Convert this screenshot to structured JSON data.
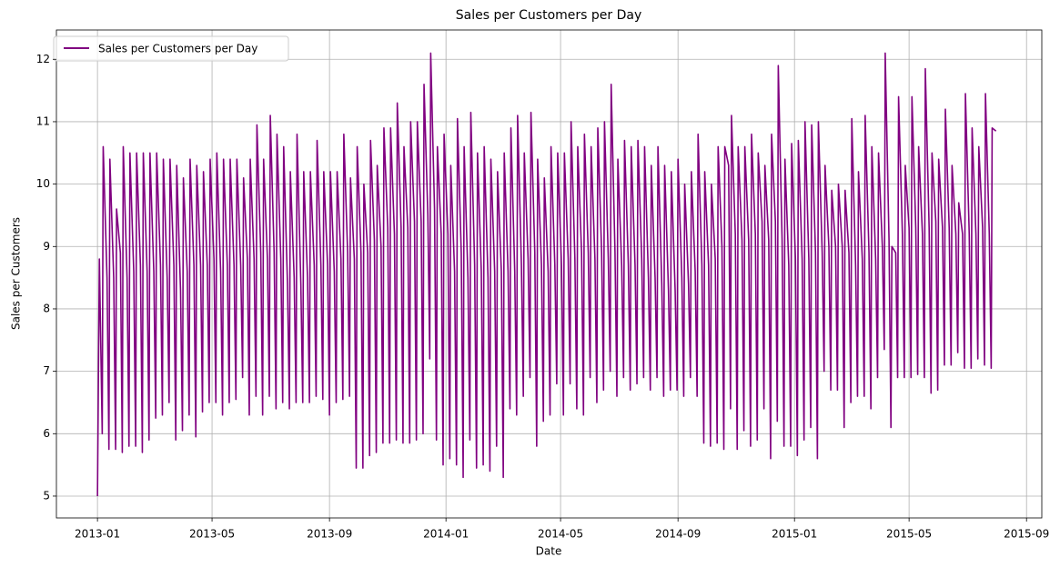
{
  "chart_data": {
    "type": "line",
    "title": "Sales per Customers per Day",
    "xlabel": "Date",
    "ylabel": "Sales per Customers",
    "xlim": [
      -43,
      989
    ],
    "ylim": [
      4.65,
      12.47
    ],
    "xticks": [
      {
        "value": 0,
        "label": "2013-01"
      },
      {
        "value": 120,
        "label": "2013-05"
      },
      {
        "value": 243,
        "label": "2013-09"
      },
      {
        "value": 365,
        "label": "2014-01"
      },
      {
        "value": 485,
        "label": "2014-05"
      },
      {
        "value": 608,
        "label": "2014-09"
      },
      {
        "value": 730,
        "label": "2015-01"
      },
      {
        "value": 850,
        "label": "2015-05"
      },
      {
        "value": 973,
        "label": "2015-09"
      }
    ],
    "yticks": [
      5,
      6,
      7,
      8,
      9,
      10,
      11,
      12
    ],
    "grid": true,
    "legend": "upper left",
    "x": [
      0,
      2,
      5,
      6,
      10,
      12,
      13,
      17,
      19,
      20,
      24,
      26,
      27,
      31,
      33,
      34,
      38,
      40,
      41,
      45,
      47,
      48,
      52,
      54,
      55,
      59,
      61,
      62,
      66,
      68,
      69,
      73,
      75,
      76,
      80,
      82,
      83,
      87,
      89,
      90,
      94,
      96,
      97,
      101,
      103,
      104,
      108,
      110,
      111,
      115,
      117,
      118,
      122,
      124,
      125,
      129,
      131,
      132,
      136,
      138,
      139,
      143,
      145,
      146,
      150,
      152,
      153,
      157,
      159,
      160,
      164,
      166,
      167,
      171,
      173,
      174,
      178,
      180,
      181,
      185,
      187,
      188,
      192,
      194,
      195,
      199,
      201,
      202,
      206,
      208,
      209,
      213,
      215,
      216,
      220,
      222,
      223,
      227,
      229,
      230,
      234,
      236,
      237,
      241,
      243,
      244,
      248,
      250,
      251,
      255,
      257,
      258,
      262,
      264,
      265,
      269,
      271,
      272,
      276,
      278,
      279,
      283,
      285,
      286,
      290,
      292,
      293,
      297,
      299,
      300,
      304,
      306,
      307,
      311,
      313,
      314,
      318,
      320,
      321,
      325,
      327,
      328,
      332,
      334,
      335,
      339,
      341,
      342,
      346,
      348,
      349,
      353,
      355,
      356,
      360,
      362,
      363,
      367,
      369,
      370,
      374,
      376,
      377,
      381,
      383,
      384,
      388,
      390,
      391,
      395,
      397,
      398,
      402,
      404,
      405,
      409,
      411,
      412,
      416,
      418,
      419,
      423,
      425,
      426,
      430,
      432,
      433,
      437,
      439,
      440,
      444,
      446,
      447,
      451,
      453,
      454,
      458,
      460,
      461,
      465,
      467,
      468,
      472,
      474,
      475,
      479,
      481,
      482,
      486,
      488,
      489,
      493,
      495,
      496,
      500,
      502,
      503,
      507,
      509,
      510,
      514,
      516,
      517,
      521,
      523,
      524,
      528,
      530,
      531,
      535,
      537,
      538,
      542,
      544,
      545,
      549,
      551,
      552,
      556,
      558,
      559,
      563,
      565,
      566,
      570,
      572,
      573,
      577,
      579,
      580,
      584,
      586,
      587,
      591,
      593,
      594,
      598,
      600,
      601,
      605,
      607,
      608,
      612,
      614,
      615,
      619,
      621,
      622,
      626,
      628,
      629,
      633,
      635,
      636,
      640,
      642,
      643,
      647,
      649,
      650,
      654,
      656,
      657,
      661,
      663,
      664,
      668,
      670,
      671,
      675,
      677,
      678,
      682,
      684,
      685,
      689,
      691,
      692,
      696,
      698,
      699,
      703,
      705,
      706,
      710,
      712,
      713,
      717,
      719,
      720,
      724,
      726,
      727,
      731,
      733,
      734,
      738,
      740,
      741,
      745,
      747,
      748,
      752,
      754,
      755,
      759,
      761,
      762,
      766,
      768,
      769,
      773,
      775,
      776,
      780,
      782,
      783,
      787,
      789,
      790,
      794,
      796,
      797,
      801,
      803,
      804,
      808,
      810,
      811,
      815,
      817,
      818,
      822,
      824,
      825,
      829,
      831,
      832,
      836,
      838,
      839,
      843,
      845,
      846,
      850,
      852,
      853,
      857,
      859,
      860,
      864,
      866,
      867,
      871,
      873,
      874,
      878,
      880,
      881,
      885,
      887,
      888,
      892,
      894,
      895,
      899,
      901,
      902,
      906,
      908,
      909,
      913,
      915,
      916,
      920,
      922,
      923,
      927,
      929,
      930,
      934,
      936,
      937,
      941
    ],
    "series": [
      {
        "name": "Sales per Customers per Day",
        "color": "#800080",
        "values": [
          5.0,
          8.8,
          6.0,
          10.6,
          8.5,
          5.75,
          10.4,
          8.5,
          5.75,
          9.6,
          8.9,
          5.7,
          10.6,
          8.5,
          5.8,
          10.5,
          8.6,
          5.8,
          10.5,
          8.7,
          5.7,
          10.5,
          8.6,
          5.9,
          10.5,
          8.6,
          6.25,
          10.5,
          8.7,
          6.3,
          10.4,
          8.5,
          6.5,
          10.4,
          8.7,
          5.9,
          10.3,
          8.3,
          6.05,
          10.1,
          8.6,
          6.3,
          10.4,
          8.7,
          5.95,
          10.3,
          8.7,
          6.35,
          10.2,
          8.7,
          6.5,
          10.4,
          8.8,
          6.5,
          10.5,
          8.6,
          6.3,
          10.4,
          8.7,
          6.5,
          10.4,
          8.7,
          6.55,
          10.4,
          8.7,
          6.9,
          10.1,
          8.8,
          6.3,
          10.4,
          8.8,
          6.6,
          10.95,
          8.9,
          6.3,
          10.4,
          8.8,
          6.6,
          11.1,
          8.9,
          6.4,
          10.8,
          8.8,
          6.5,
          10.6,
          8.4,
          6.4,
          10.2,
          8.5,
          6.5,
          10.8,
          8.4,
          6.5,
          10.2,
          8.5,
          6.5,
          10.2,
          8.7,
          6.6,
          10.7,
          8.7,
          6.55,
          10.2,
          8.7,
          6.3,
          10.2,
          8.6,
          6.5,
          10.2,
          8.8,
          6.55,
          10.8,
          8.9,
          6.6,
          10.1,
          8.8,
          5.45,
          10.6,
          8.9,
          5.45,
          10.0,
          8.9,
          5.65,
          10.7,
          9.1,
          5.7,
          10.3,
          9.0,
          5.85,
          10.9,
          9.3,
          5.85,
          10.9,
          9.2,
          5.9,
          11.3,
          9.3,
          5.85,
          10.6,
          9.3,
          5.85,
          11.0,
          9.4,
          5.9,
          11.0,
          9.4,
          6.0,
          11.6,
          9.5,
          7.2,
          12.1,
          9.6,
          5.9,
          10.6,
          9.2,
          5.5,
          10.8,
          9.2,
          5.6,
          10.3,
          8.6,
          5.5,
          11.05,
          8.9,
          5.3,
          10.6,
          8.5,
          5.9,
          11.15,
          8.7,
          5.45,
          10.5,
          8.6,
          5.5,
          10.6,
          8.5,
          5.4,
          10.4,
          8.6,
          5.8,
          10.2,
          8.6,
          5.3,
          10.5,
          8.6,
          6.4,
          10.9,
          8.6,
          6.3,
          11.1,
          8.7,
          6.6,
          10.5,
          8.8,
          6.9,
          11.15,
          8.9,
          5.8,
          10.4,
          8.7,
          6.2,
          10.1,
          8.6,
          6.3,
          10.6,
          8.7,
          6.8,
          10.5,
          8.7,
          6.3,
          10.5,
          8.8,
          6.8,
          11.0,
          8.8,
          6.4,
          10.6,
          8.9,
          6.3,
          10.8,
          8.9,
          6.9,
          10.6,
          8.8,
          6.5,
          10.9,
          8.9,
          6.7,
          11.0,
          8.8,
          7.0,
          11.6,
          8.9,
          6.6,
          10.4,
          8.7,
          6.9,
          10.7,
          8.7,
          6.7,
          10.6,
          8.7,
          6.8,
          10.7,
          8.8,
          6.9,
          10.6,
          8.5,
          6.7,
          10.3,
          8.5,
          6.9,
          10.6,
          8.4,
          6.6,
          10.3,
          8.3,
          6.7,
          10.2,
          8.3,
          6.7,
          10.4,
          8.5,
          6.6,
          10.0,
          8.4,
          6.9,
          10.2,
          8.6,
          6.6,
          10.8,
          8.7,
          5.85,
          10.2,
          8.7,
          5.8,
          10.0,
          8.8,
          5.85,
          10.6,
          9.0,
          5.75,
          10.6,
          10.3,
          6.4,
          11.1,
          9.2,
          5.75,
          10.6,
          9.1,
          6.05,
          10.6,
          9.1,
          5.8,
          10.8,
          9.2,
          5.9,
          10.5,
          9.4,
          6.4,
          10.3,
          9.1,
          5.6,
          10.8,
          9.4,
          6.2,
          11.9,
          9.1,
          5.8,
          10.4,
          8.7,
          5.8,
          10.65,
          8.8,
          5.65,
          10.7,
          8.8,
          5.9,
          11.0,
          8.8,
          6.1,
          10.95,
          8.9,
          5.6,
          11.0,
          8.9,
          7.0,
          10.3,
          9.0,
          6.7,
          9.9,
          9.0,
          6.7,
          10.0,
          9.0,
          6.1,
          9.9,
          8.9,
          6.5,
          11.05,
          8.7,
          6.6,
          10.2,
          8.8,
          6.6,
          11.1,
          8.9,
          6.4,
          10.6,
          8.8,
          6.9,
          10.5,
          9.0,
          7.35,
          12.1,
          9.1,
          6.1,
          9.0,
          8.9,
          6.9,
          11.4,
          9.2,
          6.9,
          10.3,
          9.3,
          6.9,
          11.4,
          9.3,
          6.95,
          10.6,
          9.2,
          6.9,
          11.85,
          9.3,
          6.65,
          10.5,
          9.4,
          6.7,
          10.4,
          9.3,
          7.1,
          11.2,
          9.3,
          7.1,
          10.3,
          9.2,
          7.3,
          9.7,
          9.2,
          7.05,
          11.45,
          9.2,
          7.05,
          10.9,
          9.2,
          7.2,
          10.6,
          9.3,
          7.1,
          11.45,
          9.2,
          7.05,
          10.9,
          10.85
        ]
      }
    ]
  }
}
